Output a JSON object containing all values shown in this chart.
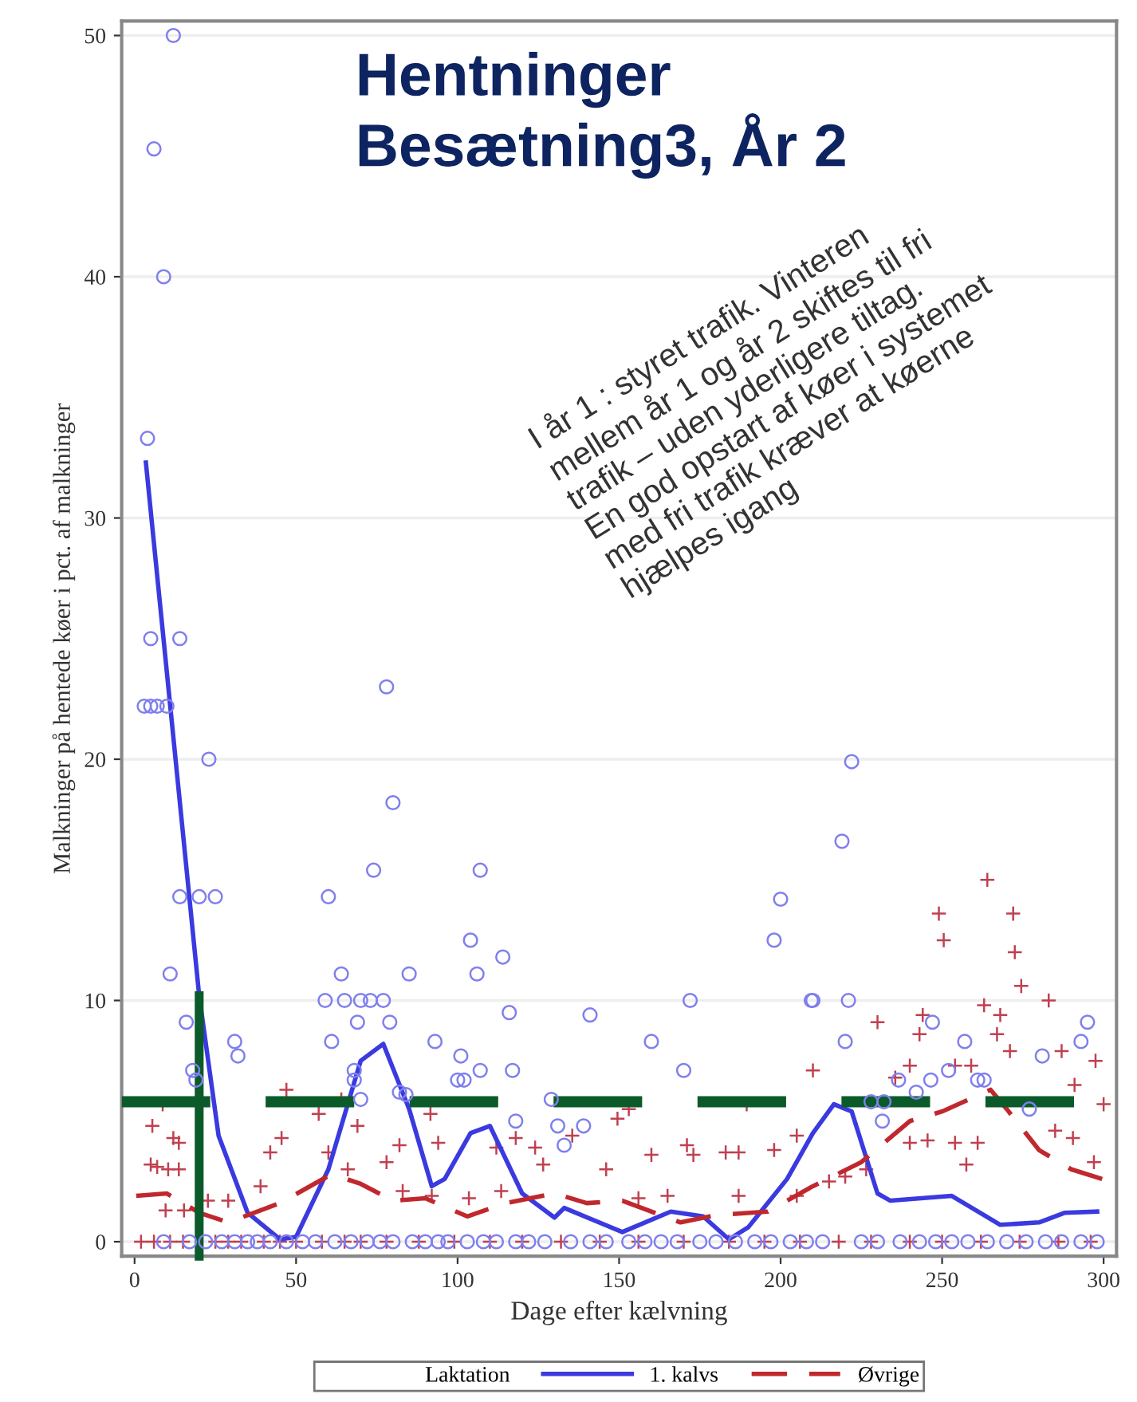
{
  "chart_data": {
    "type": "scatter",
    "title": "Hentninger\nBesætning3, År 2",
    "xlabel": "Dage efter kælvning",
    "ylabel": "Malkninger på hentede køer i pct. af malkninger",
    "legend_title": "Laktation",
    "legend": "bottom",
    "grid": "y",
    "xlim": [
      -4,
      304
    ],
    "ylim": [
      -0.6,
      50.6
    ],
    "xticks": [
      0,
      50,
      100,
      150,
      200,
      250,
      300
    ],
    "yticks": [
      0,
      10,
      20,
      30,
      40,
      50
    ],
    "annotations": [
      "I år 1 : styret trafik. Vinteren\nmellem år 1 og år 2 skiftes til fri\ntrafik – uden yderligere tiltag.\nEn god opstart af køer i systemet\nmed fri trafik kræver at køerne\nhjælpes igang"
    ],
    "ref_lines": [
      {
        "axis": "y",
        "value": 5.8,
        "color": "#0b5a2a",
        "line_style": "dashed"
      }
    ],
    "series": [
      {
        "marker": "cross",
        "color": "#c04050",
        "x": [
          8.7,
          5.5,
          12,
          13.7,
          5,
          7,
          10.4,
          13.7,
          9.6,
          15.3,
          22.7,
          29,
          47,
          45.5,
          42,
          39,
          57,
          64,
          60,
          66,
          69,
          82,
          78,
          91.6,
          94,
          83,
          92,
          103.5,
          113.5,
          118,
          112,
          124,
          126.5,
          135.5,
          153,
          149.5,
          146,
          160,
          171,
          173,
          183,
          187,
          198,
          205,
          189.5,
          210,
          230,
          243,
          244,
          249,
          250.5,
          264,
          272,
          272.5,
          274.5,
          283,
          263,
          268,
          267,
          271,
          287,
          297.5,
          291,
          300,
          240,
          235.5,
          254,
          259,
          254,
          261,
          257.5,
          285,
          290.5,
          297,
          240,
          245.5,
          226.5,
          220,
          215,
          205,
          187,
          165,
          156,
          2,
          6,
          11,
          15,
          25,
          29,
          33,
          40,
          45,
          50,
          58,
          65,
          70,
          78,
          88,
          99,
          110,
          120,
          132,
          144,
          156,
          170,
          184,
          195,
          206,
          218,
          228,
          240,
          250,
          262,
          274,
          286,
          296
        ],
        "values": [
          5.7,
          4.8,
          4.3,
          4.1,
          3.2,
          3.1,
          3.0,
          3.0,
          1.3,
          1.3,
          1.7,
          1.7,
          6.3,
          4.3,
          3.7,
          2.3,
          5.3,
          5.9,
          3.7,
          3.0,
          4.8,
          4.0,
          3.3,
          5.3,
          4.1,
          2.1,
          1.9,
          1.8,
          2.1,
          4.3,
          3.9,
          3.9,
          3.2,
          4.4,
          5.5,
          5.1,
          3.0,
          3.6,
          4.0,
          3.6,
          3.7,
          3.7,
          3.8,
          4.4,
          5.7,
          7.1,
          9.1,
          8.6,
          9.4,
          13.6,
          12.5,
          15.0,
          13.6,
          12.0,
          10.6,
          10.0,
          9.8,
          9.4,
          8.6,
          7.9,
          7.9,
          7.5,
          6.5,
          5.7,
          7.3,
          6.8,
          7.3,
          7.3,
          4.1,
          4.1,
          3.2,
          4.6,
          4.3,
          3.3,
          4.1,
          4.2,
          3.0,
          2.7,
          2.5,
          1.9,
          1.9,
          1.9,
          1.8,
          0,
          0,
          0,
          0,
          0,
          0,
          0,
          0,
          0,
          0,
          0,
          0,
          0,
          0,
          0,
          0,
          0,
          0,
          0,
          0,
          0,
          0,
          0,
          0,
          0,
          0,
          0,
          0,
          0,
          0,
          0,
          0,
          0
        ]
      },
      {
        "marker": "circle",
        "color": "#7f7fee",
        "x": [
          12,
          6,
          9,
          4,
          5,
          14,
          3,
          5,
          7,
          10,
          23,
          78,
          80,
          14,
          20,
          25,
          11,
          16,
          31,
          32,
          18,
          19,
          60,
          74,
          107,
          59,
          64,
          65,
          70,
          73,
          77,
          79,
          69,
          61,
          85,
          93,
          104,
          106,
          114,
          116,
          101,
          100,
          102,
          107,
          117,
          68,
          68,
          70,
          82,
          84,
          118,
          129,
          141,
          160,
          170,
          172,
          131,
          133,
          139,
          200,
          198,
          209.5,
          210,
          222,
          219,
          221,
          220,
          228,
          232,
          231.5,
          236.5,
          242,
          246.5,
          247,
          252,
          257,
          261,
          263,
          277,
          281,
          293,
          295,
          9,
          17,
          22,
          27,
          31,
          35,
          38,
          42,
          47,
          52,
          56,
          62,
          67,
          72,
          76,
          80,
          86,
          90,
          94,
          97,
          103,
          108,
          112,
          118,
          122,
          127,
          135,
          141,
          146,
          153,
          158,
          163,
          168,
          175,
          180,
          186,
          192,
          197,
          203,
          208,
          213,
          225,
          230,
          237,
          243,
          248,
          253,
          258,
          264,
          270,
          276,
          282,
          287,
          293,
          298
        ],
        "values": [
          50,
          45.3,
          40,
          33.3,
          25,
          25,
          22.2,
          22.2,
          22.2,
          22.2,
          20,
          23,
          18.2,
          14.3,
          14.3,
          14.3,
          11.1,
          9.1,
          8.3,
          7.7,
          7.1,
          6.7,
          14.3,
          15.4,
          15.4,
          10,
          11.1,
          10,
          10,
          10,
          10,
          9.1,
          9.1,
          8.3,
          11.1,
          8.3,
          12.5,
          11.1,
          11.8,
          9.5,
          7.7,
          6.7,
          6.7,
          7.1,
          7.1,
          7.1,
          6.7,
          5.9,
          6.2,
          6.1,
          5,
          5.9,
          9.4,
          8.3,
          7.1,
          10,
          4.8,
          4.0,
          4.8,
          14.2,
          12.5,
          10,
          10,
          19.9,
          16.6,
          10,
          8.3,
          5.8,
          5.8,
          5.0,
          6.7,
          6.2,
          6.7,
          9.1,
          7.1,
          8.3,
          6.7,
          6.7,
          5.5,
          7.7,
          8.3,
          9.1,
          0,
          0,
          0,
          0,
          0,
          0,
          0,
          0,
          0,
          0,
          0,
          0,
          0,
          0,
          0,
          0,
          0,
          0,
          0,
          0,
          0,
          0,
          0,
          0,
          0,
          0,
          0,
          0,
          0,
          0,
          0,
          0,
          0,
          0,
          0,
          0,
          0,
          0,
          0,
          0,
          0,
          0,
          0,
          0,
          0,
          0,
          0,
          0,
          0,
          0,
          0,
          0,
          0,
          0,
          0
        ]
      },
      {
        "type": "line",
        "name": "1. kalvs",
        "color": "#3a3ae0",
        "line_style": "solid",
        "x": [
          3.5,
          20,
          26,
          35,
          45,
          50,
          60,
          70,
          77,
          85,
          92,
          96,
          104,
          110,
          120,
          130,
          133,
          151,
          166,
          176,
          184,
          190,
          202,
          210,
          216.5,
          222,
          230,
          234,
          253,
          268,
          280,
          288,
          298
        ],
        "values": [
          32.3,
          10.2,
          4.4,
          1.2,
          0.1,
          0.2,
          3,
          7.5,
          8.2,
          5.5,
          2.3,
          2.6,
          4.5,
          4.8,
          2,
          1,
          1.4,
          0.4,
          1.25,
          1.05,
          0.1,
          0.6,
          2.6,
          4.5,
          5.7,
          5.4,
          2.0,
          1.7,
          1.9,
          0.7,
          0.8,
          1.2,
          1.25
        ]
      },
      {
        "type": "line",
        "name": "Øvrige",
        "color": "#c0282d",
        "line_style": "dashed",
        "x": [
          0.5,
          10,
          20,
          29,
          45,
          61,
          70,
          80,
          90,
          103,
          115,
          130,
          140,
          151,
          169,
          180,
          196,
          210,
          225,
          240,
          250,
          265,
          270,
          280,
          290,
          299.6
        ],
        "values": [
          1.9,
          2.0,
          1.2,
          0.8,
          1.6,
          2.8,
          2.4,
          1.7,
          1.8,
          1.05,
          1.6,
          2.0,
          1.6,
          1.7,
          0.8,
          1.1,
          1.25,
          2.3,
          3.3,
          5.0,
          5.4,
          6.3,
          5.5,
          3.8,
          3.0,
          2.6
        ]
      },
      {
        "type": "line",
        "color": "#0b5a2a",
        "line_style": "solid",
        "x": [
          20,
          20
        ],
        "values": [
          10.2,
          -0.6
        ]
      }
    ]
  }
}
